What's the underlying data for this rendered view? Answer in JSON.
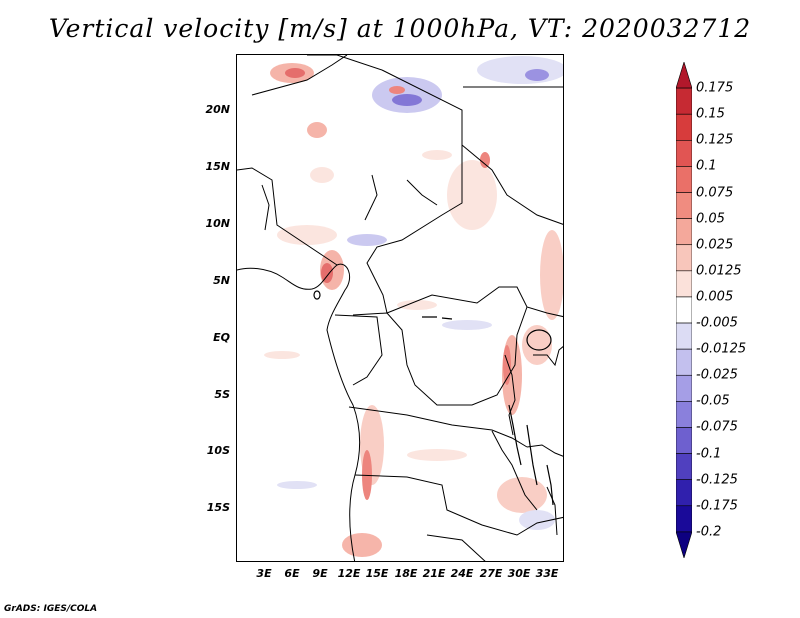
{
  "title": "Vertical velocity [m/s] at 1000hPa, VT: 2020032712",
  "footer": "GrADS: IGES/COLA",
  "map": {
    "lat_labels": [
      "20N",
      "15N",
      "10N",
      "5N",
      "EQ",
      "5S",
      "10S",
      "15S"
    ],
    "lon_labels": [
      "3E",
      "6E",
      "9E",
      "12E",
      "15E",
      "18E",
      "21E",
      "24E",
      "27E",
      "30E",
      "33E"
    ]
  },
  "colorbar": {
    "labels": [
      "0.175",
      "0.15",
      "0.125",
      "0.1",
      "0.075",
      "0.05",
      "0.025",
      "0.0125",
      "0.005",
      "-0.005",
      "-0.0125",
      "-0.025",
      "-0.05",
      "-0.075",
      "-0.1",
      "-0.125",
      "-0.175",
      "-0.2"
    ],
    "colors": [
      "#b2182b",
      "#c62a33",
      "#d73c3c",
      "#e15553",
      "#ea7068",
      "#f08c80",
      "#f4a89b",
      "#f8c6bb",
      "#fbe1da",
      "#ffffff",
      "#dcdcf4",
      "#c3c0ee",
      "#a59ee6",
      "#8a80dc",
      "#6e60cf",
      "#5040bf",
      "#3020ad",
      "#1a0a99",
      "#0d0080"
    ]
  }
}
